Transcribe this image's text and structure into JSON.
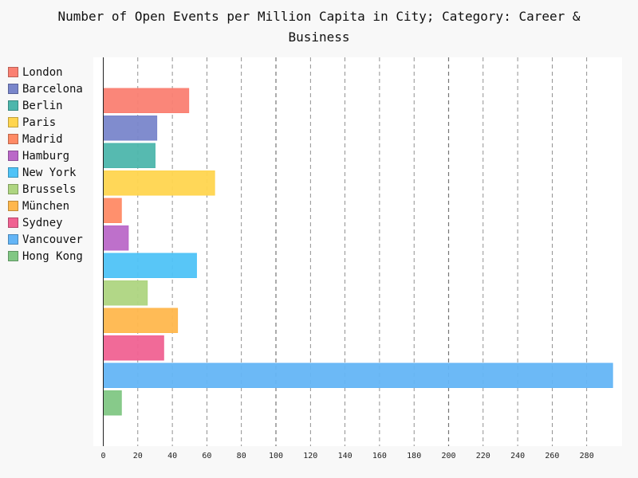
{
  "chart_data": {
    "type": "bar",
    "orientation": "horizontal",
    "title": "Number of Open Events per Million Capita in City; Category: Career & Business",
    "xlabel": "",
    "ylabel": "",
    "categories": [
      "London",
      "Barcelona",
      "Berlin",
      "Paris",
      "Madrid",
      "Hamburg",
      "New York",
      "Brussels",
      "München",
      "Sydney",
      "Vancouver",
      "Hong Kong"
    ],
    "values": [
      49.5,
      31,
      30,
      64.5,
      10.5,
      14.5,
      54,
      25.5,
      43,
      35,
      295,
      10.5
    ],
    "colors": [
      "#fa8072",
      "#7986cb",
      "#4db6ac",
      "#ffd54f",
      "#ff8a65",
      "#ba68c8",
      "#4fc3f7",
      "#aed581",
      "#ffb74d",
      "#f06292",
      "#64b5f6",
      "#81c784"
    ],
    "xlim": [
      0,
      295
    ],
    "xticks": [
      0,
      20,
      40,
      60,
      80,
      100,
      120,
      140,
      160,
      180,
      200,
      220,
      240,
      260,
      280
    ],
    "grid": true,
    "legend_position": "left"
  }
}
